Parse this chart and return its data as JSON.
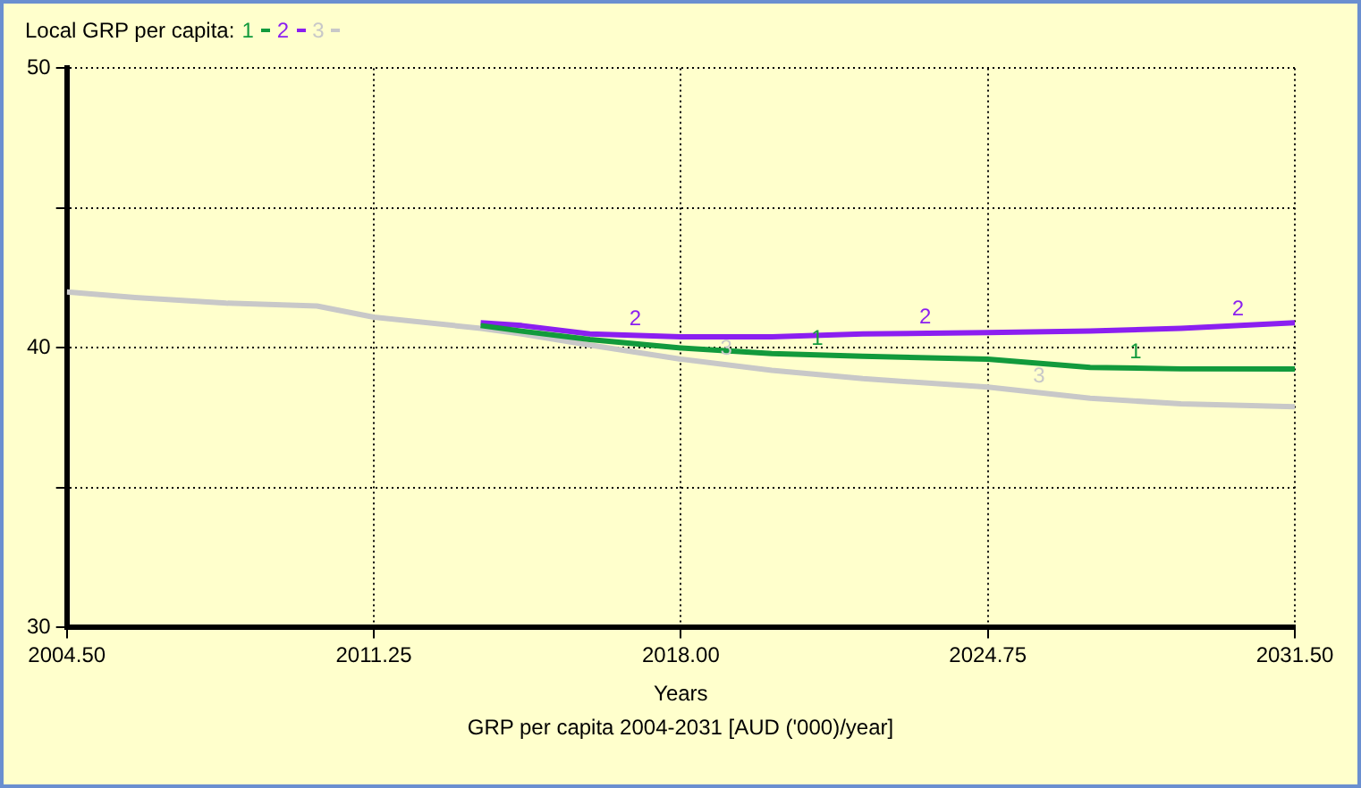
{
  "chart_data": {
    "type": "line",
    "legend_title": "Local GRP per capita:",
    "legend": "top left",
    "xlabel": "Years",
    "annotations": [
      "GRP per capita 2004-2031 [AUD ('000)/year]"
    ],
    "x": [
      2004.5,
      2006,
      2008,
      2010,
      2011.25,
      2013.6,
      2014.5,
      2016,
      2018,
      2020,
      2022,
      2024.75,
      2027,
      2029,
      2031.5
    ],
    "xlim": [
      2004.5,
      2031.5
    ],
    "xticks": [
      {
        "value": 2004.5,
        "label": "2004.50"
      },
      2011.25,
      {
        "value": 2018,
        "label": "2018.00"
      },
      2024.75,
      {
        "value": 2031.5,
        "label": "2031.50"
      }
    ],
    "ylim": [
      30,
      50
    ],
    "yticks": [
      30,
      {
        "value": 35,
        "label": null
      },
      40,
      {
        "value": 45,
        "label": null
      },
      50
    ],
    "grid": true,
    "line_style": "solid",
    "series": [
      {
        "name": "1",
        "color": "#129a3c",
        "values": [
          null,
          null,
          null,
          null,
          null,
          40.8,
          40.6,
          40.3,
          40.0,
          39.8,
          39.7,
          39.6,
          39.3,
          39.25,
          39.25
        ]
      },
      {
        "name": "2",
        "color": "#8b1ff0",
        "values": [
          null,
          null,
          null,
          null,
          null,
          40.9,
          40.8,
          40.5,
          40.4,
          40.4,
          40.5,
          40.55,
          40.6,
          40.7,
          40.9
        ]
      },
      {
        "name": "3",
        "color": "#c8c8c8",
        "values": [
          42.0,
          41.8,
          41.6,
          41.5,
          41.1,
          40.7,
          40.5,
          40.1,
          39.6,
          39.2,
          38.9,
          38.6,
          38.2,
          38.0,
          37.9
        ]
      }
    ]
  }
}
